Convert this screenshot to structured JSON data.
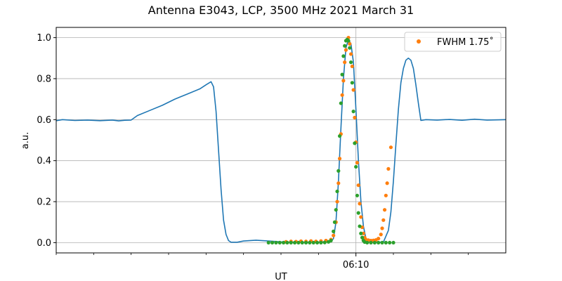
{
  "chart_data": {
    "type": "line",
    "title": "Antenna E3043, LCP, 3500 MHz 2021 March 31",
    "xlabel": "UT",
    "ylabel": "a.u.",
    "xlim": [
      "06:06:00",
      "06:12:00"
    ],
    "ylim": [
      -0.05,
      1.05
    ],
    "yticks": [
      0.0,
      0.2,
      0.4,
      0.6,
      0.8,
      1.0
    ],
    "ytick_labels": [
      "0.0",
      "0.2",
      "0.4",
      "0.6",
      "0.8",
      "1.0"
    ],
    "xticks_major": [
      {
        "time": "06:10:00",
        "label": "06:10"
      }
    ],
    "xticks_minor": [
      "06:06:00",
      "06:06:30",
      "06:07:00",
      "06:07:30",
      "06:08:00",
      "06:08:30",
      "06:09:00",
      "06:09:30",
      "06:10:30",
      "06:11:00",
      "06:11:30"
    ],
    "grid": true,
    "legend": {
      "placement": "top-right",
      "entries": [
        {
          "label": "FWHM 1.75$^\\circ$",
          "display": "FWHM 1.75˚",
          "color": "#ff7f0e",
          "marker": "dot"
        }
      ]
    },
    "series": [
      {
        "kind": "line",
        "color": "#1f77b4",
        "points": [
          [
            "06:06:00",
            0.595
          ],
          [
            "06:06:05",
            0.6
          ],
          [
            "06:06:15",
            0.596
          ],
          [
            "06:06:25",
            0.598
          ],
          [
            "06:06:35",
            0.595
          ],
          [
            "06:06:45",
            0.598
          ],
          [
            "06:06:50",
            0.594
          ],
          [
            "06:06:55",
            0.597
          ],
          [
            "06:07:00",
            0.598
          ],
          [
            "06:07:05",
            0.62
          ],
          [
            "06:07:15",
            0.645
          ],
          [
            "06:07:25",
            0.67
          ],
          [
            "06:07:35",
            0.7
          ],
          [
            "06:07:45",
            0.725
          ],
          [
            "06:07:55",
            0.75
          ],
          [
            "06:08:00",
            0.77
          ],
          [
            "06:08:04",
            0.785
          ],
          [
            "06:08:06",
            0.76
          ],
          [
            "06:08:08",
            0.64
          ],
          [
            "06:08:10",
            0.45
          ],
          [
            "06:08:12",
            0.26
          ],
          [
            "06:08:14",
            0.11
          ],
          [
            "06:08:16",
            0.04
          ],
          [
            "06:08:18",
            0.01
          ],
          [
            "06:08:20",
            0.002
          ],
          [
            "06:08:25",
            0.002
          ],
          [
            "06:08:30",
            0.008
          ],
          [
            "06:08:40",
            0.012
          ],
          [
            "06:08:50",
            0.008
          ],
          [
            "06:09:00",
            0.004
          ],
          [
            "06:09:10",
            0.002
          ],
          [
            "06:09:20",
            0.002
          ],
          [
            "06:09:30",
            0.003
          ],
          [
            "06:09:40",
            0.005
          ],
          [
            "06:09:42",
            0.02
          ],
          [
            "06:09:44",
            0.1
          ],
          [
            "06:09:46",
            0.3
          ],
          [
            "06:09:48",
            0.56
          ],
          [
            "06:09:50",
            0.8
          ],
          [
            "06:09:52",
            0.95
          ],
          [
            "06:09:54",
            0.99
          ],
          [
            "06:09:56",
            0.97
          ],
          [
            "06:09:58",
            0.88
          ],
          [
            "06:10:00",
            0.65
          ],
          [
            "06:10:02",
            0.4
          ],
          [
            "06:10:04",
            0.2
          ],
          [
            "06:10:06",
            0.08
          ],
          [
            "06:10:08",
            0.02
          ],
          [
            "06:10:10",
            0.005
          ],
          [
            "06:10:14",
            0.001
          ],
          [
            "06:10:18",
            0.002
          ],
          [
            "06:10:22",
            0.003
          ],
          [
            "06:10:26",
            0.06
          ],
          [
            "06:10:28",
            0.15
          ],
          [
            "06:10:30",
            0.3
          ],
          [
            "06:10:32",
            0.48
          ],
          [
            "06:10:34",
            0.65
          ],
          [
            "06:10:36",
            0.78
          ],
          [
            "06:10:38",
            0.85
          ],
          [
            "06:10:40",
            0.89
          ],
          [
            "06:10:42",
            0.9
          ],
          [
            "06:10:44",
            0.89
          ],
          [
            "06:10:46",
            0.85
          ],
          [
            "06:10:48",
            0.77
          ],
          [
            "06:10:50",
            0.68
          ],
          [
            "06:10:52",
            0.596
          ],
          [
            "06:10:56",
            0.6
          ],
          [
            "06:11:05",
            0.598
          ],
          [
            "06:11:15",
            0.601
          ],
          [
            "06:11:25",
            0.597
          ],
          [
            "06:11:35",
            0.602
          ],
          [
            "06:11:45",
            0.598
          ],
          [
            "06:11:55",
            0.599
          ],
          [
            "06:12:00",
            0.6
          ]
        ]
      },
      {
        "kind": "scatter",
        "name": "FWHM 1.75˚",
        "color": "#ff7f0e",
        "points": [
          [
            "06:09:04",
            0.004
          ],
          [
            "06:09:08",
            0.006
          ],
          [
            "06:09:12",
            0.005
          ],
          [
            "06:09:16",
            0.007
          ],
          [
            "06:09:20",
            0.006
          ],
          [
            "06:09:24",
            0.008
          ],
          [
            "06:09:28",
            0.006
          ],
          [
            "06:09:32",
            0.008
          ],
          [
            "06:09:36",
            0.01
          ],
          [
            "06:09:40",
            0.015
          ],
          [
            "06:09:42",
            0.035
          ],
          [
            "06:09:44",
            0.1
          ],
          [
            "06:09:45",
            0.2
          ],
          [
            "06:09:46",
            0.29
          ],
          [
            "06:09:47",
            0.41
          ],
          [
            "06:09:48",
            0.53
          ],
          [
            "06:09:49",
            0.72
          ],
          [
            "06:09:50",
            0.79
          ],
          [
            "06:09:51",
            0.88
          ],
          [
            "06:09:52",
            0.94
          ],
          [
            "06:09:53",
            0.99
          ],
          [
            "06:09:54",
            1.0
          ],
          [
            "06:09:55",
            0.97
          ],
          [
            "06:09:56",
            0.92
          ],
          [
            "06:09:57",
            0.86
          ],
          [
            "06:09:58",
            0.745
          ],
          [
            "06:09:59",
            0.61
          ],
          [
            "06:10:00",
            0.49
          ],
          [
            "06:10:01",
            0.39
          ],
          [
            "06:10:02",
            0.28
          ],
          [
            "06:10:03",
            0.19
          ],
          [
            "06:10:04",
            0.125
          ],
          [
            "06:10:05",
            0.075
          ],
          [
            "06:10:06",
            0.045
          ],
          [
            "06:10:07",
            0.025
          ],
          [
            "06:10:08",
            0.015
          ],
          [
            "06:10:10",
            0.012
          ],
          [
            "06:10:12",
            0.01
          ],
          [
            "06:10:14",
            0.011
          ],
          [
            "06:10:16",
            0.013
          ],
          [
            "06:10:18",
            0.02
          ],
          [
            "06:10:20",
            0.04
          ],
          [
            "06:10:21",
            0.07
          ],
          [
            "06:10:22",
            0.11
          ],
          [
            "06:10:23",
            0.16
          ],
          [
            "06:10:24",
            0.23
          ],
          [
            "06:10:25",
            0.29
          ],
          [
            "06:10:26",
            0.36
          ],
          [
            "06:10:28",
            0.465
          ]
        ]
      },
      {
        "kind": "scatter",
        "color": "#2ca02c",
        "points": [
          [
            "06:08:50",
            0.0
          ],
          [
            "06:08:53",
            0.0
          ],
          [
            "06:08:56",
            0.0
          ],
          [
            "06:08:59",
            0.0
          ],
          [
            "06:09:02",
            0.0
          ],
          [
            "06:09:05",
            0.0
          ],
          [
            "06:09:08",
            0.0
          ],
          [
            "06:09:11",
            0.0
          ],
          [
            "06:09:14",
            0.0
          ],
          [
            "06:09:17",
            0.0
          ],
          [
            "06:09:20",
            0.0
          ],
          [
            "06:09:23",
            0.0
          ],
          [
            "06:09:26",
            0.0
          ],
          [
            "06:09:29",
            0.0
          ],
          [
            "06:09:32",
            0.0
          ],
          [
            "06:09:35",
            0.001
          ],
          [
            "06:09:38",
            0.004
          ],
          [
            "06:09:40",
            0.01
          ],
          [
            "06:09:42",
            0.055
          ],
          [
            "06:09:43",
            0.1
          ],
          [
            "06:09:44",
            0.16
          ],
          [
            "06:09:45",
            0.25
          ],
          [
            "06:09:46",
            0.35
          ],
          [
            "06:09:47",
            0.52
          ],
          [
            "06:09:48",
            0.68
          ],
          [
            "06:09:49",
            0.82
          ],
          [
            "06:09:50",
            0.91
          ],
          [
            "06:09:51",
            0.96
          ],
          [
            "06:09:52",
            0.985
          ],
          [
            "06:09:53",
            0.99
          ],
          [
            "06:09:54",
            0.985
          ],
          [
            "06:09:55",
            0.95
          ],
          [
            "06:09:56",
            0.88
          ],
          [
            "06:09:57",
            0.78
          ],
          [
            "06:09:58",
            0.64
          ],
          [
            "06:09:59",
            0.485
          ],
          [
            "06:10:00",
            0.37
          ],
          [
            "06:10:01",
            0.23
          ],
          [
            "06:10:02",
            0.145
          ],
          [
            "06:10:03",
            0.08
          ],
          [
            "06:10:04",
            0.045
          ],
          [
            "06:10:05",
            0.025
          ],
          [
            "06:10:06",
            0.01
          ],
          [
            "06:10:07",
            0.003
          ],
          [
            "06:10:09",
            0.0
          ],
          [
            "06:10:12",
            0.0
          ],
          [
            "06:10:15",
            0.0
          ],
          [
            "06:10:18",
            0.0
          ],
          [
            "06:10:21",
            0.0
          ],
          [
            "06:10:24",
            0.0
          ],
          [
            "06:10:27",
            0.0
          ],
          [
            "06:10:30",
            0.0
          ]
        ]
      }
    ]
  }
}
